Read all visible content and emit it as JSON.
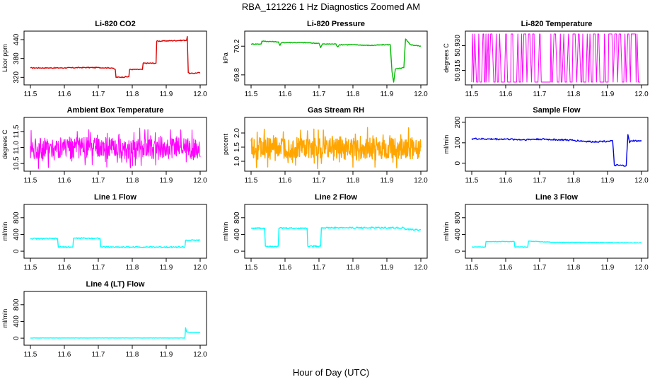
{
  "figure": {
    "title": "RBA_121226  1 Hz Diagnostics Zoomed AM",
    "xlabel": "Hour of Day (UTC)"
  },
  "chart_data": [
    {
      "id": "co2",
      "type": "line",
      "title": "Li-820 CO2",
      "ylabel": "Licor ppm",
      "color": "#dd0000",
      "xlim": [
        11.5,
        12.0
      ],
      "ylim": [
        305,
        458
      ],
      "yticks": [
        320,
        380,
        440
      ],
      "xticks": [
        11.5,
        11.6,
        11.7,
        11.8,
        11.9,
        12.0
      ],
      "x": [
        11.5,
        11.55,
        11.6,
        11.65,
        11.7,
        11.74,
        11.75,
        11.752,
        11.79,
        11.792,
        11.83,
        11.832,
        11.87,
        11.872,
        11.96,
        11.962,
        11.965,
        11.97,
        12.0
      ],
      "y": [
        350,
        350,
        350,
        351,
        351,
        350,
        345,
        320,
        322,
        345,
        345,
        365,
        365,
        435,
        438,
        450,
        335,
        332,
        335
      ]
    },
    {
      "id": "pressure",
      "type": "line",
      "title": "Li-820 Pressure",
      "ylabel": "kPa",
      "color": "#00bb00",
      "xlim": [
        11.5,
        12.0
      ],
      "ylim": [
        69.7,
        70.37
      ],
      "yticks": [
        69.8,
        70.2
      ],
      "xticks": [
        11.5,
        11.6,
        11.7,
        11.8,
        11.9,
        12.0
      ],
      "x": [
        11.5,
        11.53,
        11.532,
        11.58,
        11.585,
        11.59,
        11.65,
        11.7,
        11.705,
        11.71,
        11.75,
        11.755,
        11.76,
        11.8,
        11.85,
        11.9,
        11.91,
        11.915,
        11.92,
        11.925,
        11.95,
        11.955,
        11.96,
        11.97,
        12.0
      ],
      "y": [
        70.23,
        70.23,
        70.27,
        70.26,
        70.21,
        70.25,
        70.25,
        70.24,
        70.18,
        70.23,
        70.23,
        70.19,
        70.22,
        70.22,
        70.21,
        70.22,
        70.22,
        69.85,
        69.7,
        69.88,
        69.9,
        70.3,
        70.27,
        70.22,
        70.2
      ]
    },
    {
      "id": "licor_temp",
      "type": "line",
      "title": "Li-820 Temperature",
      "ylabel": "degrees C",
      "color": "#ff00ff",
      "xlim": [
        11.5,
        12.0
      ],
      "ylim": [
        50.908,
        50.937
      ],
      "yticks": [
        50.915,
        50.93
      ],
      "ytick_labels": [
        "50.915",
        "50.930"
      ],
      "xticks": [
        11.5,
        11.6,
        11.7,
        11.8,
        11.9,
        12.0
      ],
      "x": [
        11.5,
        11.51,
        11.52,
        11.53,
        11.54,
        11.55,
        11.56,
        11.58,
        11.6,
        11.61,
        11.62,
        11.63,
        11.65,
        11.66,
        11.68,
        11.7,
        11.72,
        11.74,
        11.76,
        11.78,
        11.8,
        11.82,
        11.84,
        11.86,
        11.88,
        11.9,
        11.91,
        11.93,
        11.95,
        11.97,
        11.99,
        12.0
      ],
      "y": [
        50.908,
        50.937,
        50.908,
        50.937,
        50.908,
        50.937,
        50.908,
        50.937,
        50.908,
        50.937,
        50.908,
        50.937,
        50.908,
        50.937,
        50.908,
        50.937,
        50.908,
        50.937,
        50.908,
        50.937,
        50.908,
        50.937,
        50.908,
        50.937,
        50.908,
        50.937,
        50.908,
        50.937,
        50.908,
        50.937,
        50.908,
        50.937
      ]
    },
    {
      "id": "box_temp",
      "type": "line",
      "title": "Ambient Box Temperature",
      "ylabel": "degrees C",
      "color": "#ff00ff",
      "xlim": [
        11.5,
        12.0
      ],
      "ylim": [
        10.35,
        11.85
      ],
      "yticks": [
        10.5,
        11.0,
        11.5
      ],
      "ytick_labels": [
        "10.5",
        "11.0",
        "11.5"
      ],
      "xticks": [
        11.5,
        11.6,
        11.7,
        11.8,
        11.9,
        12.0
      ],
      "x": [
        11.5,
        11.52,
        11.54,
        11.56,
        11.58,
        11.6,
        11.62,
        11.64,
        11.66,
        11.68,
        11.7,
        11.72,
        11.74,
        11.76,
        11.78,
        11.8,
        11.82,
        11.84,
        11.86,
        11.88,
        11.9,
        11.92,
        11.94,
        11.96,
        11.98,
        12.0
      ],
      "y": [
        10.8,
        11.4,
        10.4,
        11.7,
        10.5,
        11.5,
        10.6,
        11.6,
        10.5,
        11.7,
        10.5,
        11.6,
        10.6,
        11.5,
        10.5,
        11.7,
        10.5,
        11.6,
        10.6,
        11.6,
        10.5,
        11.6,
        10.5,
        11.5,
        10.6,
        11.8
      ]
    },
    {
      "id": "rh",
      "type": "line",
      "title": "Gas Stream RH",
      "ylabel": "percent",
      "color": "#ffa500",
      "xlim": [
        11.5,
        12.0
      ],
      "ylim": [
        0.75,
        2.45
      ],
      "yticks": [
        1.0,
        1.5,
        2.0
      ],
      "ytick_labels": [
        "1.0",
        "1.5",
        "2.0"
      ],
      "xticks": [
        11.5,
        11.6,
        11.7,
        11.8,
        11.9,
        12.0
      ],
      "x": [
        11.5,
        11.52,
        11.54,
        11.56,
        11.58,
        11.6,
        11.62,
        11.64,
        11.66,
        11.68,
        11.7,
        11.72,
        11.74,
        11.76,
        11.78,
        11.8,
        11.82,
        11.84,
        11.86,
        11.88,
        11.9,
        11.92,
        11.94,
        11.96,
        11.98,
        12.0
      ],
      "y": [
        1.2,
        2.2,
        0.9,
        2.3,
        1.0,
        2.0,
        0.9,
        2.2,
        1.0,
        2.1,
        0.9,
        2.0,
        1.0,
        2.1,
        0.9,
        2.2,
        1.0,
        2.0,
        0.9,
        2.1,
        0.9,
        2.0,
        0.85,
        2.4,
        0.9,
        1.3
      ]
    },
    {
      "id": "sample_flow",
      "type": "line",
      "title": "Sample Flow",
      "ylabel": "ml/min",
      "color": "#0000ee",
      "xlim": [
        11.5,
        12.0
      ],
      "ylim": [
        -25,
        210
      ],
      "yticks": [
        0,
        100,
        200
      ],
      "xticks": [
        11.5,
        11.6,
        11.7,
        11.8,
        11.9,
        12.0
      ],
      "x": [
        11.5,
        11.55,
        11.6,
        11.65,
        11.7,
        11.75,
        11.8,
        11.85,
        11.9,
        11.915,
        11.92,
        11.955,
        11.96,
        11.965,
        11.97,
        12.0
      ],
      "y": [
        120,
        118,
        118,
        115,
        118,
        115,
        112,
        105,
        108,
        110,
        -10,
        -12,
        140,
        100,
        110,
        108
      ]
    },
    {
      "id": "line1",
      "type": "line",
      "title": "Line 1 Flow",
      "ylabel": "ml/min",
      "color": "#00ffff",
      "xlim": [
        11.5,
        12.0
      ],
      "ylim": [
        -100,
        1050
      ],
      "yticks": [
        0,
        400,
        800
      ],
      "xticks": [
        11.5,
        11.6,
        11.7,
        11.8,
        11.9,
        12.0
      ],
      "x": [
        11.5,
        11.58,
        11.582,
        11.625,
        11.627,
        11.705,
        11.707,
        11.8,
        11.955,
        11.957,
        12.0
      ],
      "y": [
        300,
        300,
        100,
        100,
        310,
        310,
        100,
        100,
        100,
        260,
        260
      ]
    },
    {
      "id": "line2",
      "type": "line",
      "title": "Line 2 Flow",
      "ylabel": "ml/min",
      "color": "#00ffff",
      "xlim": [
        11.5,
        12.0
      ],
      "ylim": [
        -100,
        1050
      ],
      "yticks": [
        0,
        400,
        800
      ],
      "xticks": [
        11.5,
        11.6,
        11.7,
        11.8,
        11.9,
        12.0
      ],
      "x": [
        11.5,
        11.54,
        11.542,
        11.58,
        11.582,
        11.665,
        11.667,
        11.705,
        11.707,
        11.8,
        11.95,
        11.955,
        12.0
      ],
      "y": [
        550,
        550,
        120,
        120,
        550,
        550,
        120,
        120,
        560,
        560,
        560,
        520,
        510
      ]
    },
    {
      "id": "line3",
      "type": "line",
      "title": "Line 3 Flow",
      "ylabel": "ml/min",
      "color": "#00ffff",
      "xlim": [
        11.5,
        12.0
      ],
      "ylim": [
        -100,
        1050
      ],
      "yticks": [
        0,
        400,
        800
      ],
      "xticks": [
        11.5,
        11.6,
        11.7,
        11.8,
        11.9,
        12.0
      ],
      "x": [
        11.5,
        11.54,
        11.542,
        11.625,
        11.627,
        11.665,
        11.667,
        11.75,
        11.8,
        11.9,
        12.0
      ],
      "y": [
        100,
        100,
        230,
        230,
        100,
        100,
        240,
        210,
        210,
        205,
        200
      ]
    },
    {
      "id": "line4",
      "type": "line",
      "title": "Line 4 (LT) Flow",
      "ylabel": "ml/min",
      "color": "#00ffff",
      "xlim": [
        11.5,
        12.0
      ],
      "ylim": [
        -100,
        1050
      ],
      "yticks": [
        0,
        400,
        800
      ],
      "xticks": [
        11.5,
        11.6,
        11.7,
        11.8,
        11.9,
        12.0
      ],
      "x": [
        11.5,
        11.6,
        11.7,
        11.8,
        11.9,
        11.955,
        11.957,
        11.96,
        11.97,
        12.0
      ],
      "y": [
        5,
        5,
        5,
        5,
        5,
        5,
        250,
        150,
        140,
        140
      ]
    }
  ]
}
